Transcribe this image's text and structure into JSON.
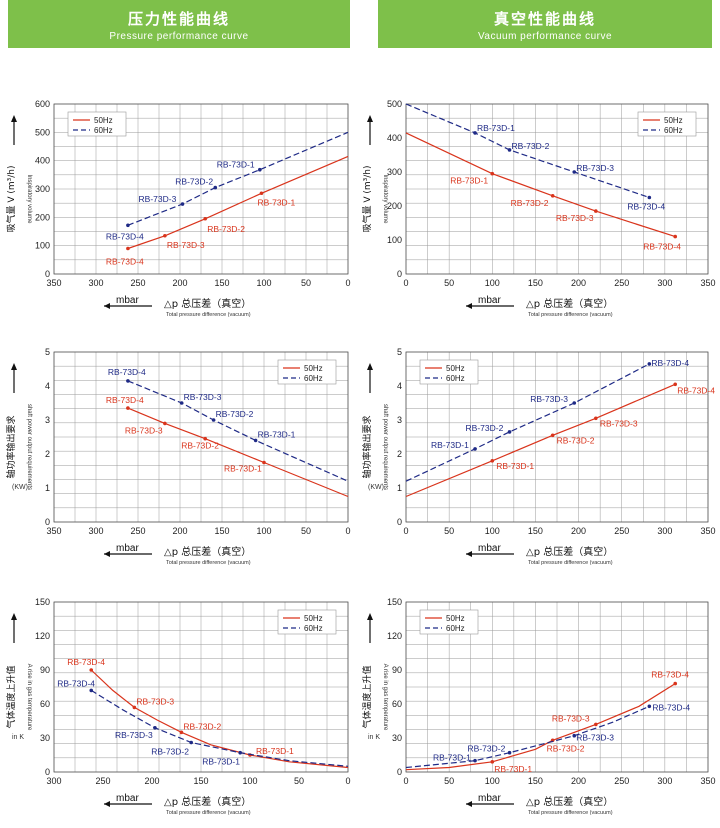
{
  "header": {
    "left_title_zh": "压力性能曲线",
    "left_title_en": "Pressure performance curve",
    "right_title_zh": "真空性能曲线",
    "right_title_en": "Vacuum performance curve"
  },
  "colors": {
    "red": "#d9341c",
    "blue": "#1f2a86",
    "grid": "#9a9a9a",
    "banner": "#7ec04a"
  },
  "chart_data": [
    {
      "id": "pressure-volume",
      "type": "line",
      "xlabel_unit": "mbar",
      "xlabel_zh": "△p  总压差（真空）",
      "xlabel_en": "Total pressure difference (vacuum)",
      "ylabel_zh": "吸气量 V (m³/h)",
      "ylabel_en": "Inspiratory volume",
      "xlim": [
        350,
        0
      ],
      "ylim": [
        0,
        600
      ],
      "xticks": [
        350,
        300,
        250,
        200,
        150,
        100,
        50,
        0
      ],
      "yticks": [
        0,
        100,
        200,
        300,
        400,
        500,
        600
      ],
      "legend_position": "top-left",
      "series": [
        {
          "name": "50Hz",
          "color": "red",
          "dash": false,
          "x": [
            262,
            218,
            170,
            103,
            0
          ],
          "y": [
            90,
            135,
            195,
            285,
            415
          ],
          "labels": [
            {
              "text": "RB-73D-4",
              "i": 0,
              "dx": -22,
              "dy": 16
            },
            {
              "text": "RB-73D-3",
              "i": 1,
              "dx": 2,
              "dy": 12
            },
            {
              "text": "RB-73D-2",
              "i": 2,
              "dx": 2,
              "dy": 13
            },
            {
              "text": "RB-73D-1",
              "i": 3,
              "dx": -4,
              "dy": 12
            }
          ]
        },
        {
          "name": "60Hz",
          "color": "blue",
          "dash": true,
          "x": [
            262,
            197,
            158,
            105,
            0
          ],
          "y": [
            172,
            247,
            305,
            368,
            500
          ],
          "labels": [
            {
              "text": "RB-73D-4",
              "i": 0,
              "dx": -22,
              "dy": 14
            },
            {
              "text": "RB-73D-3",
              "i": 1,
              "dx": -44,
              "dy": -2
            },
            {
              "text": "RB-73D-2",
              "i": 2,
              "dx": -40,
              "dy": -3
            },
            {
              "text": "RB-73D-1",
              "i": 3,
              "dx": -43,
              "dy": -2
            }
          ]
        }
      ]
    },
    {
      "id": "vacuum-volume",
      "type": "line",
      "xlabel_unit": "mbar",
      "xlabel_zh": "△p  总压差（真空）",
      "xlabel_en": "Total pressure difference (vacuum)",
      "ylabel_zh": "吸气量 V (m³/h)",
      "ylabel_en": "Inspiratory volume",
      "xlim": [
        0,
        350
      ],
      "ylim": [
        0,
        500
      ],
      "xticks": [
        0,
        50,
        100,
        150,
        200,
        250,
        300,
        350
      ],
      "yticks": [
        0,
        100,
        200,
        300,
        400,
        500
      ],
      "legend_position": "top-right",
      "series": [
        {
          "name": "50Hz",
          "color": "red",
          "dash": false,
          "x": [
            0,
            100,
            170,
            220,
            312
          ],
          "y": [
            415,
            295,
            230,
            185,
            110
          ],
          "labels": [
            {
              "text": "RB-73D-1",
              "i": 1,
              "dx": -42,
              "dy": 10
            },
            {
              "text": "RB-73D-2",
              "i": 2,
              "dx": -42,
              "dy": 10
            },
            {
              "text": "RB-73D-3",
              "i": 3,
              "dx": -40,
              "dy": 10
            },
            {
              "text": "RB-73D-4",
              "i": 4,
              "dx": -32,
              "dy": 13
            }
          ]
        },
        {
          "name": "60Hz",
          "color": "blue",
          "dash": true,
          "x": [
            0,
            80,
            120,
            195,
            282
          ],
          "y": [
            500,
            415,
            365,
            300,
            225
          ],
          "labels": [
            {
              "text": "RB-73D-1",
              "i": 1,
              "dx": 2,
              "dy": -2
            },
            {
              "text": "RB-73D-2",
              "i": 2,
              "dx": 2,
              "dy": -1
            },
            {
              "text": "RB-73D-3",
              "i": 3,
              "dx": 2,
              "dy": -1
            },
            {
              "text": "RB-73D-4",
              "i": 4,
              "dx": -22,
              "dy": 12
            }
          ]
        }
      ]
    },
    {
      "id": "pressure-power",
      "type": "line",
      "xlabel_unit": "mbar",
      "xlabel_zh": "△p  总压差（真空）",
      "xlabel_en": "Total pressure difference (vacuum)",
      "ylabel_zh": "轴功率输出要求",
      "ylabel_en": "shaft power output requirements",
      "ylabel_unit": "(KW)",
      "xlim": [
        350,
        0
      ],
      "ylim": [
        0,
        5
      ],
      "xticks": [
        350,
        300,
        250,
        200,
        150,
        100,
        50,
        0
      ],
      "yticks": [
        0,
        1,
        2,
        3,
        4,
        5
      ],
      "legend_position": "top-right",
      "series": [
        {
          "name": "50Hz",
          "color": "red",
          "dash": false,
          "x": [
            262,
            218,
            170,
            100,
            0
          ],
          "y": [
            3.35,
            2.9,
            2.45,
            1.75,
            0.75
          ],
          "labels": [
            {
              "text": "RB-73D-4",
              "i": 0,
              "dx": -22,
              "dy": -5
            },
            {
              "text": "RB-73D-3",
              "i": 1,
              "dx": -40,
              "dy": 10
            },
            {
              "text": "RB-73D-2",
              "i": 2,
              "dx": -24,
              "dy": 10
            },
            {
              "text": "RB-73D-1",
              "i": 3,
              "dx": -40,
              "dy": 9
            }
          ]
        },
        {
          "name": "60Hz",
          "color": "blue",
          "dash": true,
          "x": [
            262,
            198,
            160,
            110,
            0
          ],
          "y": [
            4.15,
            3.5,
            3.0,
            2.4,
            1.2
          ],
          "labels": [
            {
              "text": "RB-73D-4",
              "i": 0,
              "dx": -20,
              "dy": -6
            },
            {
              "text": "RB-73D-3",
              "i": 1,
              "dx": 2,
              "dy": -3
            },
            {
              "text": "RB-73D-2",
              "i": 2,
              "dx": 2,
              "dy": -3
            },
            {
              "text": "RB-73D-1",
              "i": 3,
              "dx": 2,
              "dy": -3
            }
          ]
        }
      ]
    },
    {
      "id": "vacuum-power",
      "type": "line",
      "xlabel_unit": "mbar",
      "xlabel_zh": "△p  总压差（真空）",
      "xlabel_en": "Total pressure difference (vacuum)",
      "ylabel_zh": "轴功率输出要求",
      "ylabel_en": "shaft power output requirements",
      "ylabel_unit": "(KW)",
      "xlim": [
        0,
        350
      ],
      "ylim": [
        0,
        5
      ],
      "xticks": [
        0,
        50,
        100,
        150,
        200,
        250,
        300,
        350
      ],
      "yticks": [
        0,
        1,
        2,
        3,
        4,
        5
      ],
      "legend_position": "top-left",
      "series": [
        {
          "name": "50Hz",
          "color": "red",
          "dash": false,
          "x": [
            0,
            100,
            170,
            220,
            312
          ],
          "y": [
            0.75,
            1.8,
            2.55,
            3.05,
            4.05
          ],
          "labels": [
            {
              "text": "RB-73D-1",
              "i": 1,
              "dx": 4,
              "dy": 8
            },
            {
              "text": "RB-73D-2",
              "i": 2,
              "dx": 4,
              "dy": 8
            },
            {
              "text": "RB-73D-3",
              "i": 3,
              "dx": 4,
              "dy": 8
            },
            {
              "text": "RB-73D-4",
              "i": 4,
              "dx": 2,
              "dy": 9
            }
          ]
        },
        {
          "name": "60Hz",
          "color": "blue",
          "dash": true,
          "x": [
            0,
            80,
            120,
            195,
            282
          ],
          "y": [
            1.2,
            2.15,
            2.65,
            3.5,
            4.65
          ],
          "labels": [
            {
              "text": "RB-73D-1",
              "i": 1,
              "dx": -44,
              "dy": -1
            },
            {
              "text": "RB-73D-2",
              "i": 2,
              "dx": -44,
              "dy": -1
            },
            {
              "text": "RB-73D-3",
              "i": 3,
              "dx": -44,
              "dy": -1
            },
            {
              "text": "RB-73D-4",
              "i": 4,
              "dx": 2,
              "dy": 2
            }
          ]
        }
      ]
    },
    {
      "id": "pressure-temperature",
      "type": "line",
      "xlabel_unit": "mbar",
      "xlabel_zh": "△p  总压差（真空）",
      "xlabel_en": "Total pressure difference (vacuum)",
      "ylabel_zh": "气体温度上升值",
      "ylabel_en": "A rise in gas temperature",
      "ylabel_unit": "in K",
      "xlim": [
        300,
        0
      ],
      "ylim": [
        0,
        150
      ],
      "xticks": [
        300,
        250,
        200,
        150,
        100,
        50,
        0
      ],
      "yticks": [
        0,
        30,
        60,
        90,
        120,
        150
      ],
      "legend_position": "top-right",
      "series": [
        {
          "name": "50Hz",
          "color": "red",
          "dash": false,
          "x": [
            262,
            240,
            218,
            195,
            170,
            140,
            100,
            60,
            0
          ],
          "y": [
            90,
            72,
            57,
            46,
            35,
            24,
            15,
            9,
            4
          ],
          "labels": [
            {
              "text": "RB-73D-4",
              "i": 0,
              "dx": -24,
              "dy": -5
            },
            {
              "text": "RB-73D-3",
              "i": 2,
              "dx": 2,
              "dy": -3
            },
            {
              "text": "RB-73D-2",
              "i": 4,
              "dx": 2,
              "dy": -3
            },
            {
              "text": "RB-73D-1",
              "i": 6,
              "dx": 6,
              "dy": -1
            }
          ]
        },
        {
          "name": "60Hz",
          "color": "blue",
          "dash": true,
          "x": [
            262,
            230,
            197,
            160,
            110,
            60,
            0
          ],
          "y": [
            72,
            55,
            39,
            26,
            17,
            10,
            5
          ],
          "labels": [
            {
              "text": "RB-73D-4",
              "i": 0,
              "dx": -34,
              "dy": -4
            },
            {
              "text": "RB-73D-3",
              "i": 2,
              "dx": -40,
              "dy": 10
            },
            {
              "text": "RB-73D-2",
              "i": 3,
              "dx": -40,
              "dy": 12
            },
            {
              "text": "RB-73D-1",
              "i": 4,
              "dx": -38,
              "dy": 12
            }
          ]
        }
      ]
    },
    {
      "id": "vacuum-temperature",
      "type": "line",
      "xlabel_unit": "mbar",
      "xlabel_zh": "△p  总压差（真空）",
      "xlabel_en": "Total pressure difference (vacuum)",
      "ylabel_zh": "气体温度上升值",
      "ylabel_en": "A rise in gas temperature",
      "ylabel_unit": "in K",
      "xlim": [
        0,
        350
      ],
      "ylim": [
        0,
        150
      ],
      "xticks": [
        0,
        50,
        100,
        150,
        200,
        250,
        300,
        350
      ],
      "yticks": [
        0,
        30,
        60,
        90,
        120,
        150
      ],
      "legend_position": "top-left",
      "series": [
        {
          "name": "50Hz",
          "color": "red",
          "dash": false,
          "x": [
            0,
            50,
            100,
            150,
            170,
            220,
            270,
            312
          ],
          "y": [
            2,
            4,
            9,
            20,
            28,
            42,
            58,
            78
          ],
          "labels": [
            {
              "text": "RB-73D-1",
              "i": 2,
              "dx": 2,
              "dy": 10
            },
            {
              "text": "RB-73D-2",
              "i": 4,
              "dx": -6,
              "dy": 11
            },
            {
              "text": "RB-73D-3",
              "i": 5,
              "dx": -44,
              "dy": -3
            },
            {
              "text": "RB-73D-4",
              "i": 7,
              "dx": -24,
              "dy": -6
            }
          ]
        },
        {
          "name": "60Hz",
          "color": "blue",
          "dash": true,
          "x": [
            0,
            80,
            120,
            160,
            195,
            240,
            282
          ],
          "y": [
            4,
            10,
            17,
            25,
            32,
            44,
            58
          ],
          "labels": [
            {
              "text": "RB-73D-1",
              "i": 1,
              "dx": -42,
              "dy": 0
            },
            {
              "text": "RB-73D-2",
              "i": 2,
              "dx": -42,
              "dy": -1
            },
            {
              "text": "RB-73D-3",
              "i": 4,
              "dx": 2,
              "dy": 5
            },
            {
              "text": "RB-73D-4",
              "i": 6,
              "dx": 3,
              "dy": 4
            }
          ]
        }
      ]
    }
  ]
}
